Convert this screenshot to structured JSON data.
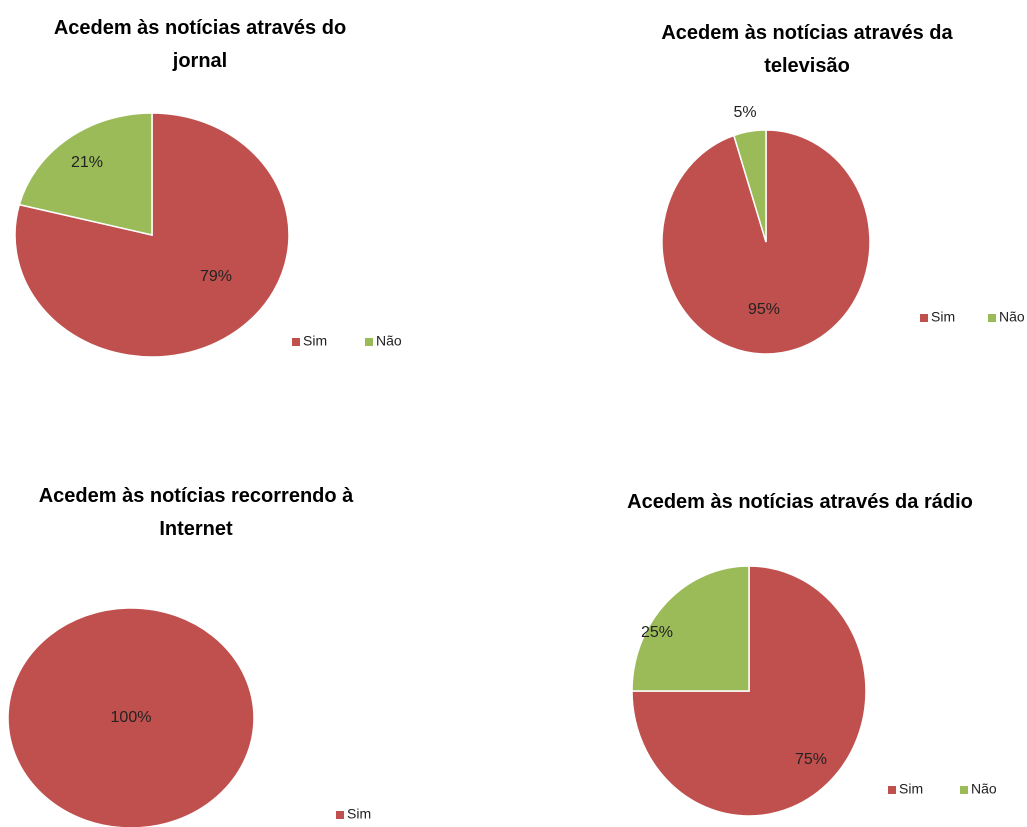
{
  "chart_data": [
    {
      "type": "pie",
      "title": "Acedem às notícias através do jornal",
      "categories": [
        "Sim",
        "Não"
      ],
      "values": [
        79,
        21
      ],
      "value_labels": [
        "79%",
        "21%"
      ],
      "colors": [
        "#c0504d",
        "#9bbb59"
      ]
    },
    {
      "type": "pie",
      "title": "Acedem às notícias através da televisão",
      "categories": [
        "Sim",
        "Não"
      ],
      "values": [
        95,
        5
      ],
      "value_labels": [
        "95%",
        "5%"
      ],
      "colors": [
        "#c0504d",
        "#9bbb59"
      ]
    },
    {
      "type": "pie",
      "title": "Acedem às notícias recorrendo à Internet",
      "categories": [
        "Sim"
      ],
      "values": [
        100
      ],
      "value_labels": [
        "100%"
      ],
      "colors": [
        "#c0504d"
      ]
    },
    {
      "type": "pie",
      "title": "Acedem às notícias através da rádio",
      "categories": [
        "Sim",
        "Não"
      ],
      "values": [
        75,
        25
      ],
      "value_labels": [
        "75%",
        "25%"
      ],
      "colors": [
        "#c0504d",
        "#9bbb59"
      ]
    }
  ]
}
